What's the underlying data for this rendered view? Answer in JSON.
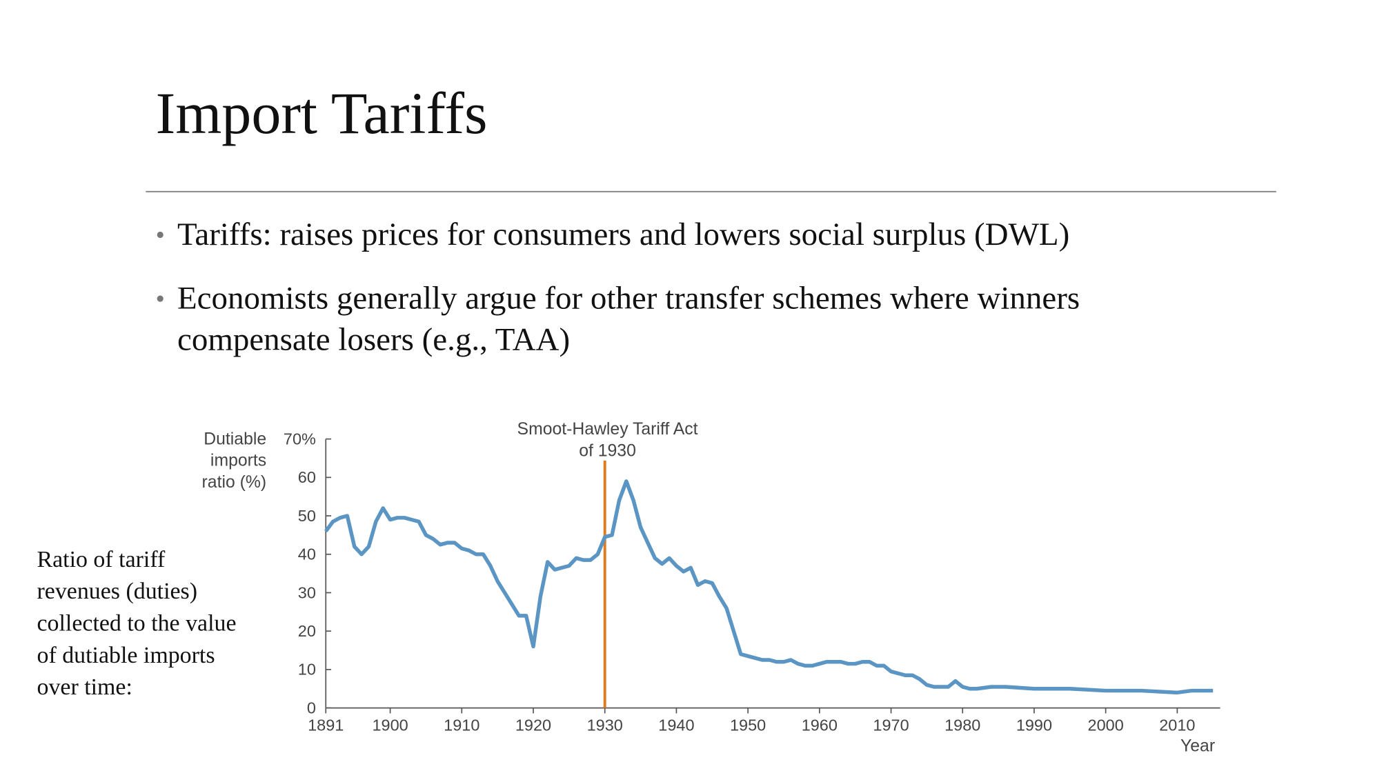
{
  "title": "Import Tariffs",
  "bullets": [
    [
      "Tariffs: raises prices for consumers and lowers social surplus (DWL)"
    ],
    [
      "Economists generally argue for other transfer schemes where winners",
      "compensate losers (e.g., TAA)"
    ]
  ],
  "side_note": [
    "Ratio of tariff",
    "revenues (duties)",
    "collected to the value",
    "of dutiable imports",
    "over time:"
  ],
  "chart_data": {
    "type": "line",
    "ylabel": [
      "Dutiable",
      "imports",
      "ratio (%)"
    ],
    "xlabel": "Year",
    "annotation": {
      "lines": [
        "Smoot-Hawley Tariff Act",
        "of 1930"
      ],
      "x": 1930,
      "color": "#e07b1f"
    },
    "xlim": [
      1891,
      2016
    ],
    "xticks": [
      1891,
      1900,
      1910,
      1920,
      1930,
      1940,
      1950,
      1960,
      1970,
      1980,
      1990,
      2000,
      2010
    ],
    "ylim": [
      0,
      70
    ],
    "yticks": [
      0,
      10,
      20,
      30,
      40,
      50,
      60,
      {
        "value": 70,
        "label": "70%"
      }
    ],
    "series": [
      {
        "color": "#5b95c4",
        "x": [
          1891,
          1892,
          1893,
          1894,
          1895,
          1896,
          1897,
          1898,
          1899,
          1900,
          1901,
          1902,
          1903,
          1904,
          1905,
          1906,
          1907,
          1908,
          1909,
          1910,
          1911,
          1912,
          1913,
          1914,
          1915,
          1916,
          1917,
          1918,
          1919,
          1920,
          1921,
          1922,
          1923,
          1924,
          1925,
          1926,
          1927,
          1928,
          1929,
          1930,
          1931,
          1932,
          1933,
          1934,
          1935,
          1936,
          1937,
          1938,
          1939,
          1940,
          1941,
          1942,
          1943,
          1944,
          1945,
          1946,
          1947,
          1948,
          1949,
          1950,
          1951,
          1952,
          1953,
          1954,
          1955,
          1956,
          1957,
          1958,
          1959,
          1960,
          1961,
          1962,
          1963,
          1964,
          1965,
          1966,
          1967,
          1968,
          1969,
          1970,
          1971,
          1972,
          1973,
          1974,
          1975,
          1976,
          1977,
          1978,
          1979,
          1980,
          1981,
          1982,
          1984,
          1986,
          1990,
          1995,
          2000,
          2005,
          2010,
          2012,
          2015
        ],
        "values": [
          46,
          48.5,
          49.5,
          50,
          42,
          40,
          42,
          48.5,
          52,
          49,
          49.5,
          49.5,
          49,
          48.5,
          45,
          44,
          42.5,
          43,
          43,
          41.5,
          41,
          40,
          40,
          37,
          33,
          30,
          27,
          24,
          24,
          16,
          29,
          38,
          36,
          36.5,
          37,
          39,
          38.5,
          38.5,
          40,
          44.5,
          45,
          54,
          59,
          54,
          47,
          43,
          39,
          37.5,
          39,
          37,
          35.5,
          36.5,
          32,
          33,
          32.5,
          29,
          26,
          20,
          14,
          13.5,
          13,
          12.5,
          12.5,
          12,
          12,
          12.5,
          11.5,
          11,
          11,
          11.5,
          12,
          12,
          12,
          11.5,
          11.5,
          12,
          12,
          11,
          11,
          9.5,
          9,
          8.5,
          8.5,
          7.5,
          6,
          5.5,
          5.5,
          5.5,
          7,
          5.5,
          5,
          5,
          5.5,
          5.5,
          5,
          5,
          4.5,
          4.5,
          4,
          4.5,
          4.5
        ]
      }
    ]
  }
}
